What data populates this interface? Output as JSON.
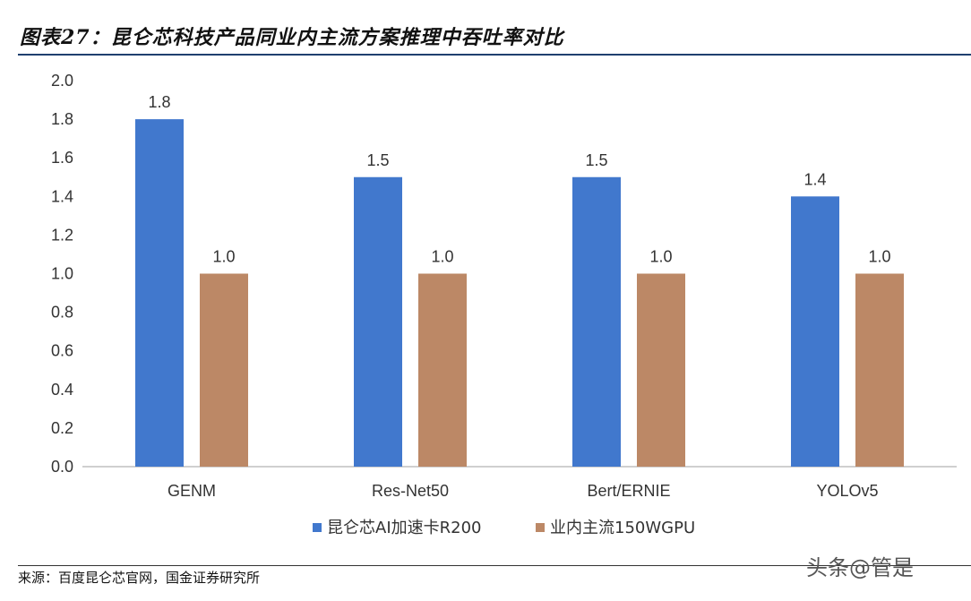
{
  "header": {
    "title": "图表27：昆仑芯科技产品同业内主流方案推理中吞吐率对比"
  },
  "footer": {
    "source": "来源：百度昆仑芯官网，国金证券研究所"
  },
  "watermark": "头条@管是",
  "chart_data": {
    "type": "bar",
    "categories": [
      "GENM",
      "Res-Net50",
      "Bert/ERNIE",
      "YOLOv5"
    ],
    "series": [
      {
        "name": "昆仑芯AI加速卡R200",
        "values": [
          1.8,
          1.5,
          1.5,
          1.4
        ],
        "labels": [
          "1.8",
          "1.5",
          "1.5",
          "1.4"
        ],
        "color": "#4178CD"
      },
      {
        "name": "业内主流150WGPU",
        "values": [
          1.0,
          1.0,
          1.0,
          1.0
        ],
        "labels": [
          "1.0",
          "1.0",
          "1.0",
          "1.0"
        ],
        "color": "#BC8866"
      }
    ],
    "yticks": [
      "0.0",
      "0.2",
      "0.4",
      "0.6",
      "0.8",
      "1.0",
      "1.2",
      "1.4",
      "1.6",
      "1.8",
      "2.0"
    ],
    "ylim": [
      0,
      2.0
    ],
    "grid": false,
    "legend_position": "bottom"
  }
}
